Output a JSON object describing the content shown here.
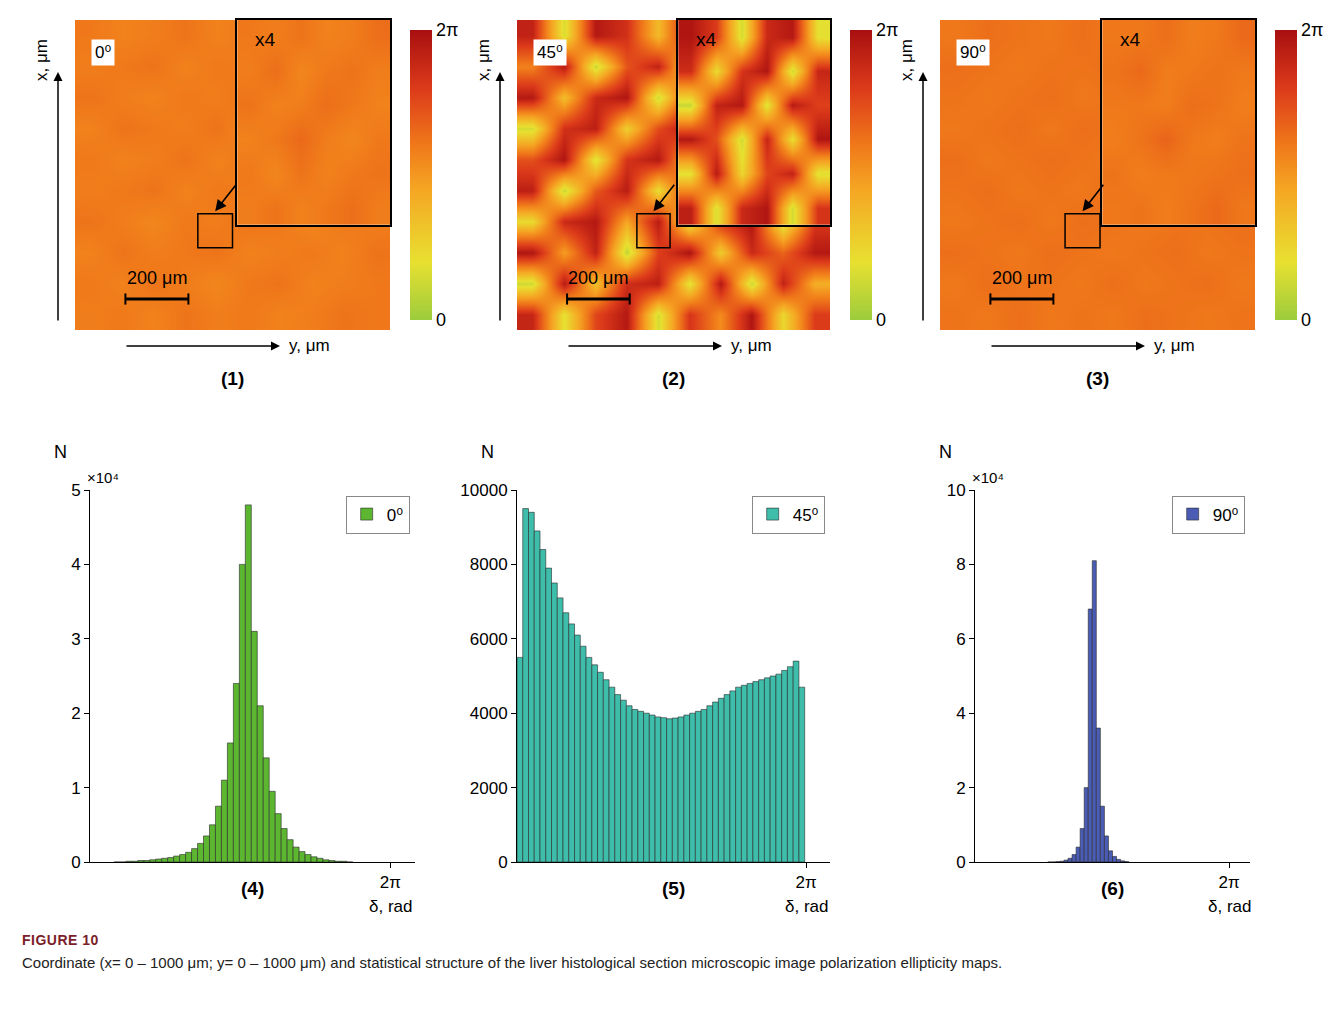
{
  "figure": {
    "label": "FIGURE 10",
    "caption": "Coordinate (x= 0 – 1000 μm; y= 0 – 1000 μm) and statistical structure of the liver histological section microscopic image polarization ellipticity maps."
  },
  "chart_data": [
    {
      "type": "heatmap",
      "panel": "(1)",
      "label": "0⁰",
      "x_label": "y, μm",
      "y_label": "x, μm",
      "xlim": [
        0,
        1000
      ],
      "ylim": [
        0,
        1000
      ],
      "tick_labels": false,
      "colorbar": {
        "range": [
          0,
          6.2832
        ],
        "ticks": [
          0,
          {
            "value": 6.2832,
            "label": "2π"
          }
        ]
      },
      "scale_bar": {
        "length": 200,
        "label": "200 μm"
      },
      "values": [
        [
          3.7,
          3.8,
          3.6,
          3.9,
          3.7,
          3.8,
          3.6,
          3.7,
          3.9,
          3.8
        ],
        [
          3.8,
          3.6,
          3.9,
          3.7,
          3.5,
          3.8,
          3.9,
          3.6,
          3.7,
          3.8
        ],
        [
          3.6,
          3.9,
          3.7,
          3.8,
          3.9,
          3.6,
          3.7,
          3.8,
          3.6,
          3.9
        ],
        [
          3.9,
          3.7,
          3.5,
          3.8,
          3.7,
          3.9,
          3.8,
          3.5,
          3.8,
          3.7
        ],
        [
          3.7,
          3.8,
          3.9,
          3.6,
          3.8,
          3.7,
          3.6,
          3.9,
          3.7,
          3.6
        ],
        [
          3.8,
          3.6,
          3.7,
          3.9,
          3.6,
          3.8,
          3.9,
          3.7,
          3.8,
          3.9
        ],
        [
          3.6,
          3.9,
          3.8,
          3.7,
          3.9,
          3.5,
          3.7,
          3.8,
          3.6,
          3.7
        ],
        [
          3.9,
          3.7,
          3.6,
          3.8,
          3.7,
          3.9,
          3.6,
          3.9,
          3.8,
          3.6
        ],
        [
          3.7,
          3.8,
          3.9,
          3.6,
          3.8,
          3.7,
          3.8,
          3.6,
          3.7,
          3.9
        ],
        [
          3.8,
          3.6,
          3.7,
          3.9,
          3.6,
          3.8,
          3.7,
          3.9,
          3.8,
          3.7
        ]
      ],
      "inset": {
        "label": "x4",
        "box_x": [
          390,
          500
        ],
        "box_y": [
          265,
          375
        ],
        "values": [
          [
            3.7,
            3.9,
            3.6,
            3.8,
            4.0,
            3.7
          ],
          [
            3.8,
            3.5,
            3.9,
            3.6,
            3.8,
            3.9
          ],
          [
            3.6,
            3.8,
            4.1,
            3.7,
            3.5,
            3.8
          ],
          [
            3.9,
            3.6,
            3.7,
            4.0,
            3.8,
            3.6
          ],
          [
            3.7,
            4.0,
            3.5,
            3.8,
            3.9,
            3.7
          ],
          [
            3.8,
            3.7,
            3.9,
            3.6,
            3.7,
            4.0
          ]
        ]
      }
    },
    {
      "type": "heatmap",
      "panel": "(2)",
      "label": "45⁰",
      "x_label": "y, μm",
      "y_label": "x, μm",
      "xlim": [
        0,
        1000
      ],
      "ylim": [
        0,
        1000
      ],
      "tick_labels": false,
      "colorbar": {
        "range": [
          0,
          6.2832
        ],
        "ticks": [
          0,
          {
            "value": 6.2832,
            "label": "2π"
          }
        ]
      },
      "scale_bar": {
        "length": 200,
        "label": "200 μm"
      },
      "values": [
        [
          5.6,
          1.2,
          4.8,
          6.0,
          0.9,
          5.2,
          3.4,
          6.1,
          1.5,
          5.0
        ],
        [
          0.8,
          5.9,
          2.1,
          5.4,
          5.8,
          1.1,
          6.0,
          0.7,
          5.7,
          2.6
        ],
        [
          6.1,
          3.0,
          5.7,
          0.6,
          4.9,
          6.2,
          1.8,
          5.5,
          4.2,
          6.0
        ],
        [
          1.4,
          5.5,
          6.0,
          2.8,
          5.9,
          0.9,
          5.3,
          6.1,
          0.8,
          5.1
        ],
        [
          5.8,
          0.7,
          4.4,
          5.9,
          1.3,
          5.6,
          4.0,
          1.2,
          5.9,
          3.3
        ],
        [
          4.6,
          6.1,
          1.0,
          5.2,
          6.0,
          2.4,
          5.8,
          5.7,
          1.6,
          6.0
        ],
        [
          0.9,
          5.3,
          5.8,
          1.7,
          4.7,
          6.1,
          0.8,
          4.9,
          6.1,
          1.1
        ],
        [
          6.0,
          2.2,
          5.5,
          6.1,
          0.8,
          5.0,
          5.9,
          2.0,
          5.4,
          5.8
        ],
        [
          3.6,
          5.9,
          0.7,
          4.5,
          5.7,
          1.5,
          6.0,
          5.6,
          0.9,
          4.8
        ],
        [
          5.7,
          1.0,
          6.0,
          5.3,
          2.3,
          5.8,
          1.4,
          5.2,
          6.1,
          2.5
        ]
      ],
      "inset": {
        "label": "x4",
        "box_x": [
          383,
          489
        ],
        "box_y": [
          265,
          375
        ],
        "values": [
          [
            5.8,
            1.0,
            5.5,
            6.1,
            0.9,
            5.2
          ],
          [
            1.2,
            5.9,
            1.5,
            4.8,
            5.7,
            1.1
          ],
          [
            6.0,
            4.6,
            0.8,
            5.6,
            1.3,
            6.1
          ],
          [
            0.7,
            5.7,
            6.0,
            1.0,
            5.9,
            4.9
          ],
          [
            5.4,
            1.4,
            5.2,
            6.1,
            0.8,
            5.6
          ],
          [
            6.1,
            5.0,
            0.9,
            5.5,
            6.0,
            1.2
          ]
        ]
      }
    },
    {
      "type": "heatmap",
      "panel": "(3)",
      "label": "90⁰",
      "x_label": "y, μm",
      "y_label": "x, μm",
      "xlim": [
        0,
        1000
      ],
      "ylim": [
        0,
        1000
      ],
      "tick_labels": false,
      "colorbar": {
        "range": [
          0,
          6.2832
        ],
        "ticks": [
          0,
          {
            "value": 6.2832,
            "label": "2π"
          }
        ]
      },
      "scale_bar": {
        "length": 200,
        "label": "200 μm"
      },
      "values": [
        [
          3.9,
          3.8,
          4.0,
          3.8,
          3.9,
          3.8,
          4.0,
          3.9,
          3.8,
          3.9
        ],
        [
          3.8,
          4.0,
          3.9,
          3.9,
          3.8,
          4.0,
          3.8,
          3.9,
          4.0,
          3.8
        ],
        [
          4.0,
          3.9,
          3.8,
          4.0,
          3.9,
          3.8,
          3.9,
          4.0,
          3.8,
          3.9
        ],
        [
          3.8,
          3.9,
          4.0,
          3.8,
          4.0,
          3.9,
          3.8,
          3.9,
          3.9,
          4.0
        ],
        [
          3.9,
          4.0,
          3.8,
          3.9,
          3.8,
          4.0,
          3.9,
          3.8,
          4.0,
          3.8
        ],
        [
          4.0,
          3.8,
          3.9,
          4.0,
          3.9,
          3.8,
          4.0,
          3.9,
          3.8,
          3.9
        ],
        [
          3.8,
          3.9,
          4.0,
          3.8,
          4.0,
          3.9,
          3.8,
          4.0,
          3.9,
          3.8
        ],
        [
          3.9,
          3.8,
          3.9,
          4.0,
          3.8,
          3.9,
          4.0,
          3.8,
          3.9,
          4.0
        ],
        [
          4.0,
          3.9,
          3.8,
          3.9,
          3.9,
          4.0,
          3.8,
          3.9,
          4.0,
          3.8
        ],
        [
          3.8,
          4.0,
          3.9,
          3.8,
          4.0,
          3.8,
          3.9,
          4.0,
          3.8,
          3.9
        ]
      ],
      "inset": {
        "label": "x4",
        "box_x": [
          397,
          508
        ],
        "box_y": [
          265,
          375
        ],
        "values": [
          [
            3.8,
            3.9,
            3.7,
            3.9,
            4.1,
            3.8
          ],
          [
            3.9,
            3.7,
            3.8,
            3.8,
            3.9,
            4.0
          ],
          [
            3.7,
            3.9,
            4.2,
            3.8,
            3.7,
            3.9
          ],
          [
            3.8,
            3.8,
            3.7,
            4.0,
            3.9,
            3.7
          ],
          [
            3.9,
            4.1,
            3.7,
            3.8,
            3.9,
            3.8
          ],
          [
            3.8,
            3.8,
            4.0,
            3.7,
            3.8,
            4.1
          ]
        ]
      }
    },
    {
      "type": "bar",
      "panel": "(4)",
      "x_label": "δ, rad",
      "y_label": "N",
      "y_multiplier": "×10⁴",
      "xlim": [
        0,
        6.8
      ],
      "xticks": [
        {
          "value": 6.2832,
          "label": "2π"
        }
      ],
      "ylim": [
        0,
        5
      ],
      "yticks": [
        0,
        1,
        2,
        3,
        4,
        5
      ],
      "legend": "upper right",
      "bins": [
        0.5,
        0.625,
        0.75,
        0.875,
        1,
        1.125,
        1.25,
        1.375,
        1.5,
        1.625,
        1.75,
        1.875,
        2,
        2.125,
        2.25,
        2.375,
        2.5,
        2.625,
        2.75,
        2.875,
        3,
        3.125,
        3.25,
        3.375,
        3.5,
        3.625,
        3.75,
        3.875,
        4,
        4.125,
        4.25,
        4.375,
        4.5,
        4.625,
        4.75,
        4.875,
        5,
        5.125,
        5.25,
        5.375,
        5.5
      ],
      "series": [
        {
          "name": "0⁰",
          "color": "#5cb630",
          "values": [
            0,
            0,
            0.01,
            0.01,
            0.02,
            0.02,
            0.03,
            0.04,
            0.05,
            0.06,
            0.08,
            0.1,
            0.13,
            0.18,
            0.25,
            0.35,
            0.5,
            0.75,
            1.1,
            1.6,
            2.4,
            4.0,
            4.8,
            3.1,
            2.1,
            1.4,
            0.95,
            0.65,
            0.45,
            0.3,
            0.2,
            0.14,
            0.1,
            0.07,
            0.05,
            0.03,
            0.02,
            0.01,
            0.01,
            0
          ]
        }
      ]
    },
    {
      "type": "bar",
      "panel": "(5)",
      "x_label": "δ, rad",
      "y_label": "N",
      "xlim": [
        0,
        6.8
      ],
      "xticks": [
        {
          "value": 6.2832,
          "label": "2π"
        }
      ],
      "ylim": [
        0,
        10000
      ],
      "yticks": [
        0,
        2000,
        4000,
        6000,
        8000,
        10000
      ],
      "legend": "upper right",
      "bins": [
        0,
        0.125,
        0.25,
        0.375,
        0.5,
        0.625,
        0.75,
        0.875,
        1,
        1.125,
        1.25,
        1.375,
        1.5,
        1.625,
        1.75,
        1.875,
        2,
        2.125,
        2.25,
        2.375,
        2.5,
        2.625,
        2.75,
        2.875,
        3,
        3.125,
        3.25,
        3.375,
        3.5,
        3.625,
        3.75,
        3.875,
        4,
        4.125,
        4.25,
        4.375,
        4.5,
        4.625,
        4.75,
        4.875,
        5,
        5.125,
        5.25,
        5.375,
        5.5,
        5.625,
        5.75,
        5.875,
        6,
        6.125,
        6.25
      ],
      "series": [
        {
          "name": "45⁰",
          "color": "#3dbdaa",
          "values": [
            5500,
            9500,
            9400,
            8900,
            8400,
            7900,
            7500,
            7100,
            6700,
            6400,
            6100,
            5800,
            5500,
            5300,
            5100,
            4900,
            4700,
            4500,
            4350,
            4200,
            4100,
            4050,
            4000,
            3950,
            3900,
            3880,
            3850,
            3870,
            3900,
            3950,
            4000,
            4050,
            4100,
            4200,
            4300,
            4400,
            4500,
            4600,
            4700,
            4750,
            4800,
            4850,
            4900,
            4950,
            5000,
            5050,
            5150,
            5250,
            5400,
            4700
          ]
        }
      ]
    },
    {
      "type": "bar",
      "panel": "(6)",
      "x_label": "δ, rad",
      "y_label": "N",
      "y_multiplier": "×10⁴",
      "xlim": [
        0,
        6.8
      ],
      "xticks": [
        {
          "value": 6.2832,
          "label": "2π"
        }
      ],
      "ylim": [
        0,
        10
      ],
      "yticks": [
        0,
        2,
        4,
        6,
        8,
        10
      ],
      "legend": "upper right",
      "bins": [
        1.8,
        1.9,
        2,
        2.1,
        2.2,
        2.3,
        2.4,
        2.5,
        2.6,
        2.7,
        2.8,
        2.9,
        3,
        3.1,
        3.2,
        3.3,
        3.4,
        3.5,
        3.6,
        3.7,
        3.8
      ],
      "series": [
        {
          "name": "90⁰",
          "color": "#4a5cb4",
          "values": [
            0,
            0,
            0.01,
            0.02,
            0.05,
            0.1,
            0.2,
            0.4,
            0.9,
            2.0,
            6.8,
            8.1,
            3.6,
            1.5,
            0.7,
            0.3,
            0.15,
            0.07,
            0.03,
            0.01
          ]
        }
      ]
    }
  ]
}
